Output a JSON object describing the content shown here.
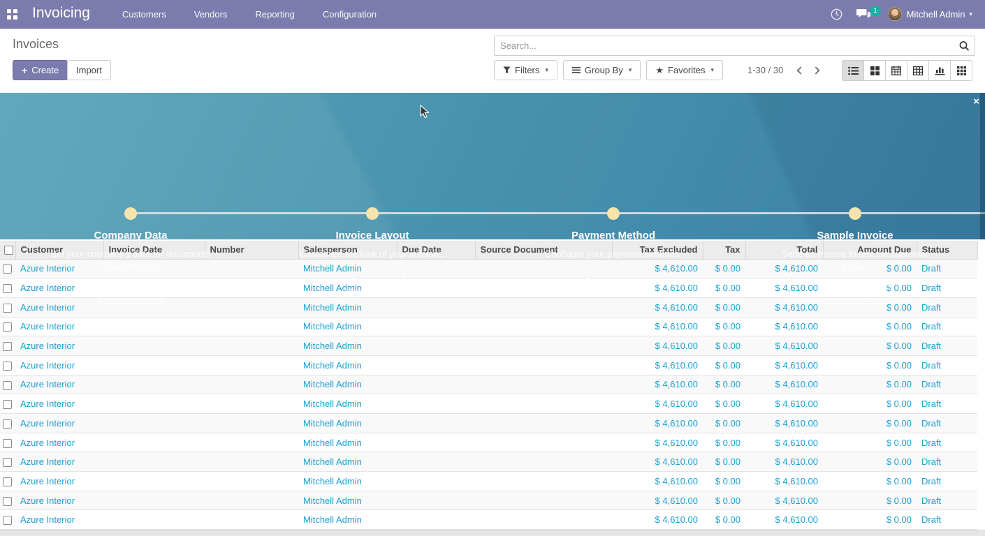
{
  "colors": {
    "navbar_purple": "#7c7bad",
    "link_blue": "#1b9fd3",
    "badge_teal": "#16b0a4",
    "banner_teal_start": "#57a3b9",
    "banner_blue_end": "#3b80a6",
    "timeline_dot_cream": "#f6e4ac",
    "header_gray": "#ececec"
  },
  "navbar": {
    "brand": "Invoicing",
    "menus": [
      "Customers",
      "Vendors",
      "Reporting",
      "Configuration"
    ],
    "systray": {
      "message_badge": "1",
      "user_name": "Mitchell Admin"
    }
  },
  "control_panel": {
    "title": "Invoices",
    "create_label": "Create",
    "create_plus": "+",
    "import_label": "Import",
    "search_placeholder": "Search...",
    "filters_label": "Filters",
    "group_by_label": "Group By",
    "favorites_label": "Favorites",
    "pager": "1-30 / 30"
  },
  "onboarding": {
    "close_label": "×",
    "steps": [
      {
        "title": "Company Data",
        "description": "Set your company's data for documents header/footer.",
        "button": "Let's start!"
      },
      {
        "title": "Invoice Layout",
        "description": "Customize the look of your invoices.",
        "button": "Customize"
      },
      {
        "title": "Payment Method",
        "description": "Configure your payment methods.",
        "button": "Set payments"
      },
      {
        "title": "Sample Invoice",
        "description": "Send an invoice to test the customer portal.",
        "button": "Send sample"
      }
    ]
  },
  "table": {
    "columns": [
      "Customer",
      "Invoice Date",
      "Number",
      "Salesperson",
      "Due Date",
      "Source Document",
      "Tax Excluded",
      "Tax",
      "Total",
      "Amount Due",
      "Status"
    ],
    "rows": [
      {
        "customer": "Azure Interior",
        "invoice_date": "",
        "number": "",
        "salesperson": "Mitchell Admin",
        "due_date": "",
        "source_document": "",
        "tax_excluded": "$ 4,610.00",
        "tax": "$ 0.00",
        "total": "$ 4,610.00",
        "amount_due": "$ 0.00",
        "status": "Draft"
      },
      {
        "customer": "Azure Interior",
        "invoice_date": "",
        "number": "",
        "salesperson": "Mitchell Admin",
        "due_date": "",
        "source_document": "",
        "tax_excluded": "$ 4,610.00",
        "tax": "$ 0.00",
        "total": "$ 4,610.00",
        "amount_due": "$ 0.00",
        "status": "Draft"
      },
      {
        "customer": "Azure Interior",
        "invoice_date": "",
        "number": "",
        "salesperson": "Mitchell Admin",
        "due_date": "",
        "source_document": "",
        "tax_excluded": "$ 4,610.00",
        "tax": "$ 0.00",
        "total": "$ 4,610.00",
        "amount_due": "$ 0.00",
        "status": "Draft"
      },
      {
        "customer": "Azure Interior",
        "invoice_date": "",
        "number": "",
        "salesperson": "Mitchell Admin",
        "due_date": "",
        "source_document": "",
        "tax_excluded": "$ 4,610.00",
        "tax": "$ 0.00",
        "total": "$ 4,610.00",
        "amount_due": "$ 0.00",
        "status": "Draft"
      },
      {
        "customer": "Azure Interior",
        "invoice_date": "",
        "number": "",
        "salesperson": "Mitchell Admin",
        "due_date": "",
        "source_document": "",
        "tax_excluded": "$ 4,610.00",
        "tax": "$ 0.00",
        "total": "$ 4,610.00",
        "amount_due": "$ 0.00",
        "status": "Draft"
      },
      {
        "customer": "Azure Interior",
        "invoice_date": "",
        "number": "",
        "salesperson": "Mitchell Admin",
        "due_date": "",
        "source_document": "",
        "tax_excluded": "$ 4,610.00",
        "tax": "$ 0.00",
        "total": "$ 4,610.00",
        "amount_due": "$ 0.00",
        "status": "Draft"
      },
      {
        "customer": "Azure Interior",
        "invoice_date": "",
        "number": "",
        "salesperson": "Mitchell Admin",
        "due_date": "",
        "source_document": "",
        "tax_excluded": "$ 4,610.00",
        "tax": "$ 0.00",
        "total": "$ 4,610.00",
        "amount_due": "$ 0.00",
        "status": "Draft"
      },
      {
        "customer": "Azure Interior",
        "invoice_date": "",
        "number": "",
        "salesperson": "Mitchell Admin",
        "due_date": "",
        "source_document": "",
        "tax_excluded": "$ 4,610.00",
        "tax": "$ 0.00",
        "total": "$ 4,610.00",
        "amount_due": "$ 0.00",
        "status": "Draft"
      },
      {
        "customer": "Azure Interior",
        "invoice_date": "",
        "number": "",
        "salesperson": "Mitchell Admin",
        "due_date": "",
        "source_document": "",
        "tax_excluded": "$ 4,610.00",
        "tax": "$ 0.00",
        "total": "$ 4,610.00",
        "amount_due": "$ 0.00",
        "status": "Draft"
      },
      {
        "customer": "Azure Interior",
        "invoice_date": "",
        "number": "",
        "salesperson": "Mitchell Admin",
        "due_date": "",
        "source_document": "",
        "tax_excluded": "$ 4,610.00",
        "tax": "$ 0.00",
        "total": "$ 4,610.00",
        "amount_due": "$ 0.00",
        "status": "Draft"
      },
      {
        "customer": "Azure Interior",
        "invoice_date": "",
        "number": "",
        "salesperson": "Mitchell Admin",
        "due_date": "",
        "source_document": "",
        "tax_excluded": "$ 4,610.00",
        "tax": "$ 0.00",
        "total": "$ 4,610.00",
        "amount_due": "$ 0.00",
        "status": "Draft"
      },
      {
        "customer": "Azure Interior",
        "invoice_date": "",
        "number": "",
        "salesperson": "Mitchell Admin",
        "due_date": "",
        "source_document": "",
        "tax_excluded": "$ 4,610.00",
        "tax": "$ 0.00",
        "total": "$ 4,610.00",
        "amount_due": "$ 0.00",
        "status": "Draft"
      },
      {
        "customer": "Azure Interior",
        "invoice_date": "",
        "number": "",
        "salesperson": "Mitchell Admin",
        "due_date": "",
        "source_document": "",
        "tax_excluded": "$ 4,610.00",
        "tax": "$ 0.00",
        "total": "$ 4,610.00",
        "amount_due": "$ 0.00",
        "status": "Draft"
      },
      {
        "customer": "Azure Interior",
        "invoice_date": "",
        "number": "",
        "salesperson": "Mitchell Admin",
        "due_date": "",
        "source_document": "",
        "tax_excluded": "$ 4,610.00",
        "tax": "$ 0.00",
        "total": "$ 4,610.00",
        "amount_due": "$ 0.00",
        "status": "Draft"
      }
    ]
  }
}
